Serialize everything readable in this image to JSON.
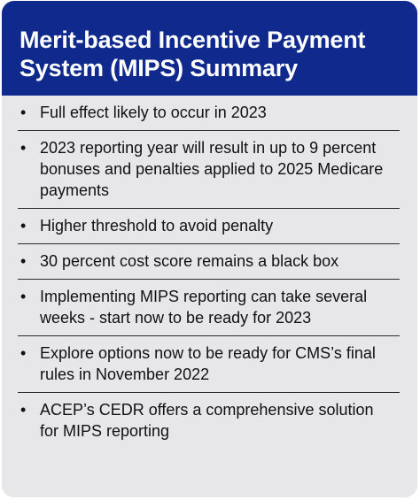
{
  "header": {
    "title_line1": "Merit-based Incentive Payment",
    "title_line2": "System (MIPS) Summary"
  },
  "items": [
    "Full effect likely to occur in 2023",
    "2023 reporting year will result in up to 9 percent bonuses and penalties applied to 2025 Medicare payments",
    "Higher threshold to avoid penalty",
    "30 percent cost score remains a black box",
    "Implementing MIPS reporting can take several weeks - start now to be ready for 2023",
    "Explore options now to be ready for CMS’s final rules in November 2022",
    "ACEP’s CEDR offers a comprehensive solution for MIPS reporting"
  ],
  "colors": {
    "header_background": "#0f2a8c",
    "card_background": "#e7e7e9",
    "title_text": "#ffffff",
    "body_text": "#111111"
  }
}
